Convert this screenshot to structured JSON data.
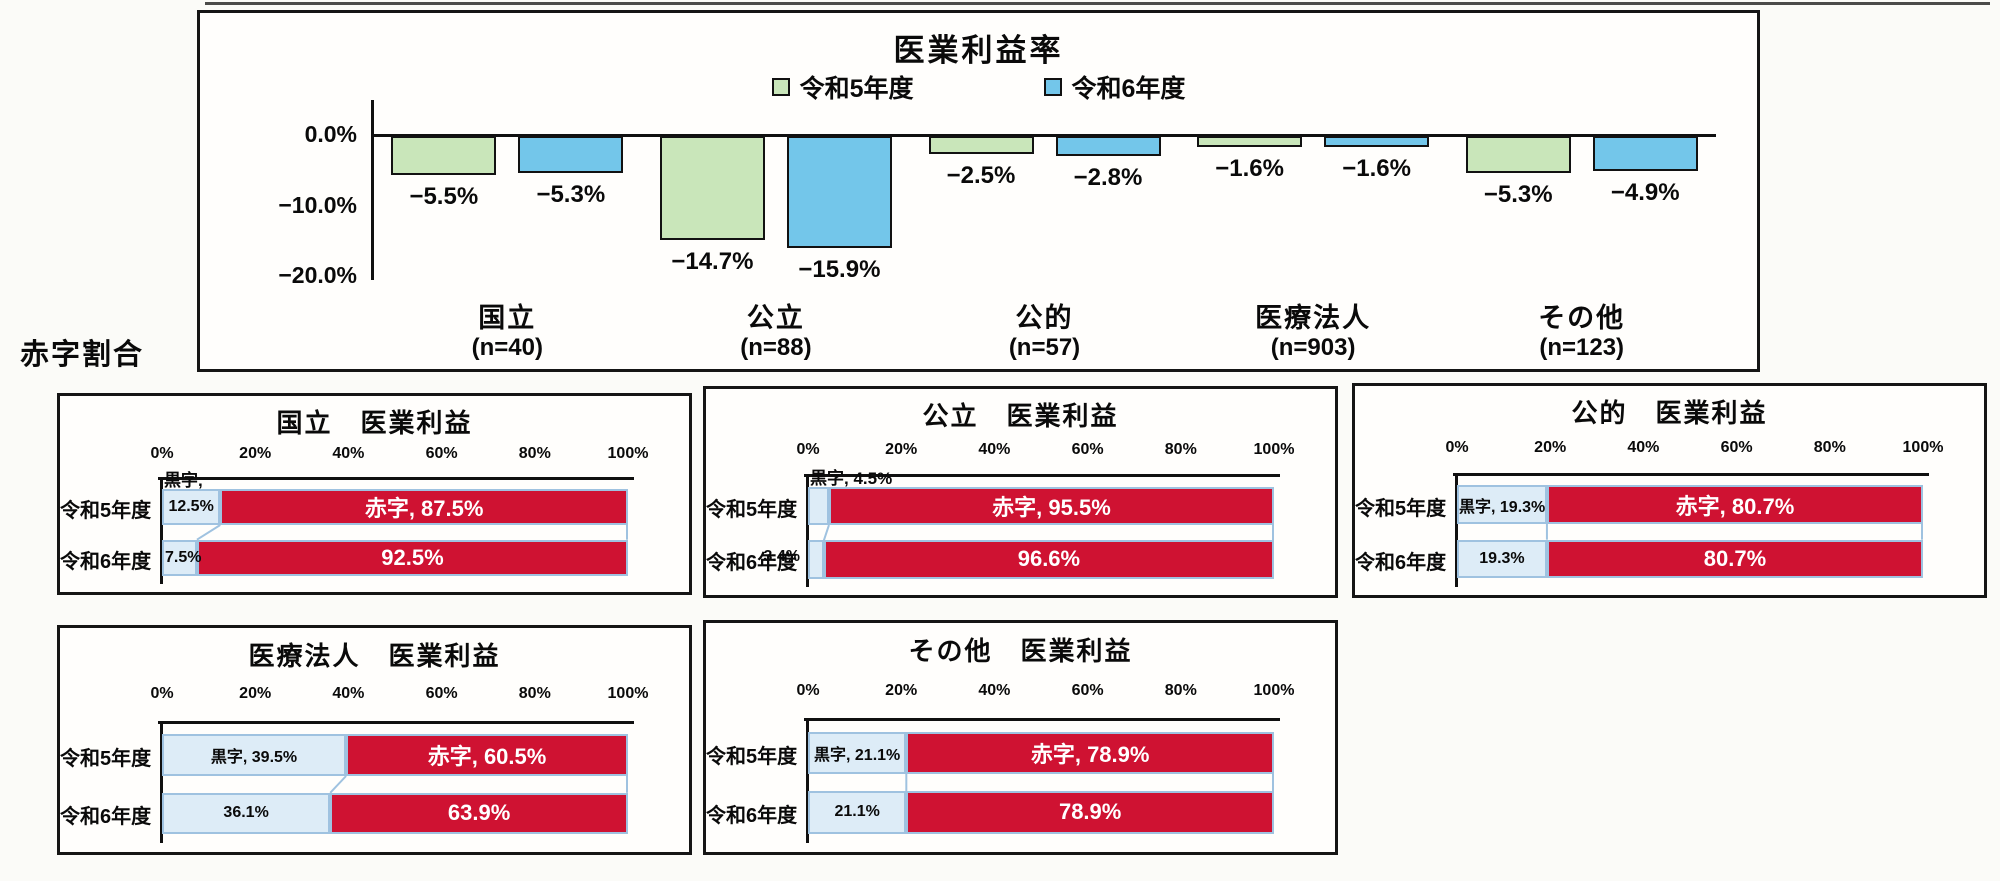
{
  "page": {
    "deficit_section_label": "赤字割合"
  },
  "colors": {
    "reiwa5_green": "#c9e6ba",
    "reiwa6_blue": "#73c6ea",
    "kuroji_fill": "#ddecf7",
    "akaji_fill": "#cf1232",
    "segment_border": "#9fc2e0",
    "axis_black": "#101010"
  },
  "chart_data": [
    {
      "id": "iryo-riekiritsu",
      "type": "bar",
      "title": "医業利益率",
      "legend": [
        {
          "label": "令和5年度",
          "color": "#c9e6ba"
        },
        {
          "label": "令和6年度",
          "color": "#73c6ea"
        }
      ],
      "categories": [
        {
          "label": "国立",
          "sublabel": "(n=40)"
        },
        {
          "label": "公立",
          "sublabel": "(n=88)"
        },
        {
          "label": "公的",
          "sublabel": "(n=57)"
        },
        {
          "label": "医療法人",
          "sublabel": "(n=903)"
        },
        {
          "label": "その他",
          "sublabel": "(n=123)"
        }
      ],
      "series": [
        {
          "name": "令和5年度",
          "color": "#c9e6ba",
          "values": [
            -5.5,
            -14.7,
            -2.5,
            -1.6,
            -5.3
          ],
          "labels": [
            "−5.5%",
            "−14.7%",
            "−2.5%",
            "−1.6%",
            "−5.3%"
          ]
        },
        {
          "name": "令和6年度",
          "color": "#73c6ea",
          "values": [
            -5.3,
            -15.9,
            -2.8,
            -1.6,
            -4.9
          ],
          "labels": [
            "−5.3%",
            "−15.9%",
            "−2.8%",
            "−1.6%",
            "−4.9%"
          ]
        }
      ],
      "ylim": [
        -20,
        0
      ],
      "yticks": [
        {
          "value": 0,
          "label": "0.0%"
        },
        {
          "value": -10,
          "label": "−10.0%"
        },
        {
          "value": -20,
          "label": "−20.0%"
        }
      ],
      "grid": false,
      "legend_position": "top"
    },
    {
      "id": "kokuritsu",
      "type": "stacked-bar",
      "title": "国立　医業利益",
      "xticks": [
        "0%",
        "20%",
        "40%",
        "60%",
        "80%",
        "100%"
      ],
      "xlim": [
        0,
        100
      ],
      "rows": [
        {
          "label": "令和5年度",
          "segments": [
            {
              "name": "黒字",
              "value": 12.5,
              "label": "12.5%",
              "label_above": "黒字,",
              "label_position": "inside"
            },
            {
              "name": "赤字",
              "value": 87.5,
              "label": "赤字, 87.5%"
            }
          ]
        },
        {
          "label": "令和6年度",
          "segments": [
            {
              "name": "黒字",
              "value": 7.5,
              "label": "7.5%",
              "label_position": "start"
            },
            {
              "name": "赤字",
              "value": 92.5,
              "label": "92.5%"
            }
          ]
        }
      ]
    },
    {
      "id": "kouritsu",
      "type": "stacked-bar",
      "title": "公立　医業利益",
      "xticks": [
        "0%",
        "20%",
        "40%",
        "60%",
        "80%",
        "100%"
      ],
      "xlim": [
        0,
        100
      ],
      "rows": [
        {
          "label": "令和5年度",
          "segments": [
            {
              "name": "黒字",
              "value": 4.5,
              "label": "",
              "label_above": "黒字, 4.5%",
              "label_position": "above"
            },
            {
              "name": "赤字",
              "value": 95.5,
              "label": "赤字, 95.5%"
            }
          ]
        },
        {
          "label": "令和6年度",
          "segments": [
            {
              "name": "黒字",
              "value": 3.4,
              "label": "3.4%",
              "label_position": "left"
            },
            {
              "name": "赤字",
              "value": 96.6,
              "label": "96.6%"
            }
          ]
        }
      ]
    },
    {
      "id": "kouteki",
      "type": "stacked-bar",
      "title": "公的　医業利益",
      "xticks": [
        "0%",
        "20%",
        "40%",
        "60%",
        "80%",
        "100%"
      ],
      "xlim": [
        0,
        100
      ],
      "rows": [
        {
          "label": "令和5年度",
          "segments": [
            {
              "name": "黒字",
              "value": 19.3,
              "label": "黒字, 19.3%",
              "label_position": "inside"
            },
            {
              "name": "赤字",
              "value": 80.7,
              "label": "赤字, 80.7%"
            }
          ]
        },
        {
          "label": "令和6年度",
          "segments": [
            {
              "name": "黒字",
              "value": 19.3,
              "label": "19.3%",
              "label_position": "inside"
            },
            {
              "name": "赤字",
              "value": 80.7,
              "label": "80.7%"
            }
          ]
        }
      ]
    },
    {
      "id": "iryohojin",
      "type": "stacked-bar",
      "title": "医療法人　医業利益",
      "xticks": [
        "0%",
        "20%",
        "40%",
        "60%",
        "80%",
        "100%"
      ],
      "xlim": [
        0,
        100
      ],
      "rows": [
        {
          "label": "令和5年度",
          "segments": [
            {
              "name": "黒字",
              "value": 39.5,
              "label": "黒字, 39.5%",
              "label_position": "inside"
            },
            {
              "name": "赤字",
              "value": 60.5,
              "label": "赤字, 60.5%"
            }
          ]
        },
        {
          "label": "令和6年度",
          "segments": [
            {
              "name": "黒字",
              "value": 36.1,
              "label": "36.1%",
              "label_position": "inside"
            },
            {
              "name": "赤字",
              "value": 63.9,
              "label": "63.9%"
            }
          ]
        }
      ]
    },
    {
      "id": "sonota",
      "type": "stacked-bar",
      "title": "その他　医業利益",
      "xticks": [
        "0%",
        "20%",
        "40%",
        "60%",
        "80%",
        "100%"
      ],
      "xlim": [
        0,
        100
      ],
      "rows": [
        {
          "label": "令和5年度",
          "segments": [
            {
              "name": "黒字",
              "value": 21.1,
              "label": "黒字, 21.1%",
              "label_position": "inside"
            },
            {
              "name": "赤字",
              "value": 78.9,
              "label": "赤字, 78.9%"
            }
          ]
        },
        {
          "label": "令和6年度",
          "segments": [
            {
              "name": "黒字",
              "value": 21.1,
              "label": "21.1%",
              "label_position": "inside"
            },
            {
              "name": "赤字",
              "value": 78.9,
              "label": "78.9%"
            }
          ]
        }
      ]
    }
  ]
}
